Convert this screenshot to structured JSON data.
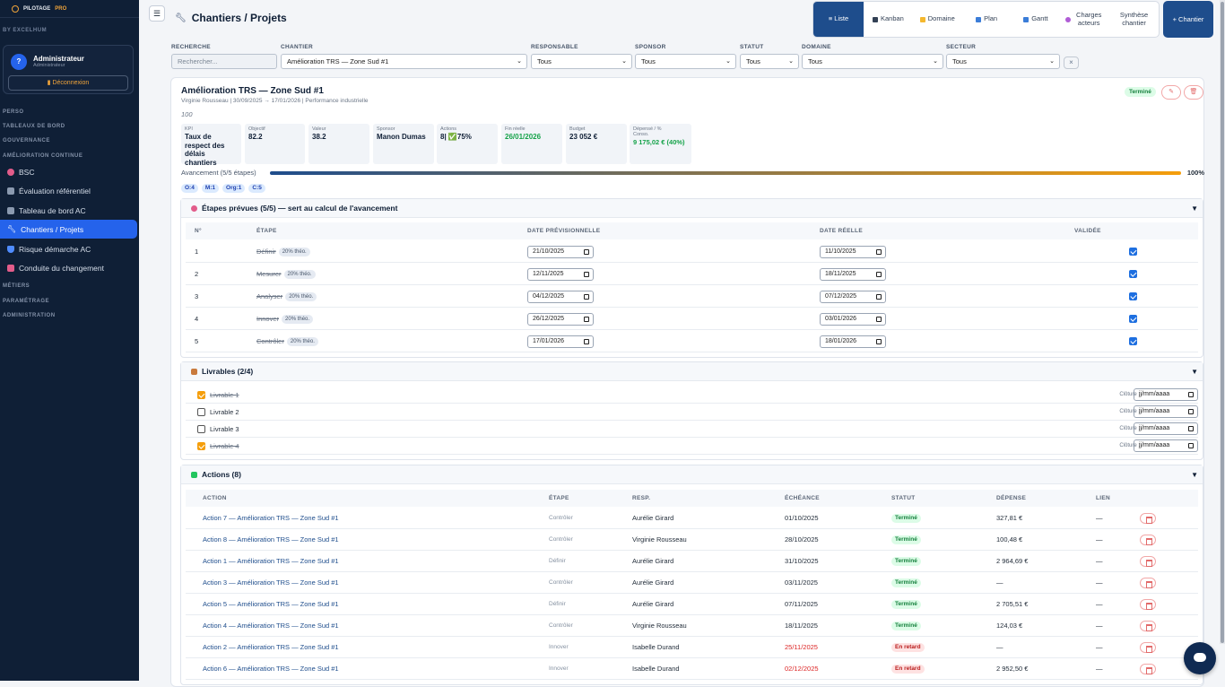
{
  "brand": {
    "name": "PILOTAGE",
    "suffix": "PRO",
    "byline": "BY EXCELHUM"
  },
  "user": {
    "avatar": "?",
    "name": "Administrateur",
    "role": "Administrateur",
    "logout": "Déconnexion"
  },
  "nav": {
    "perso": "PERSO",
    "tableaux": "TABLEAUX DE BORD",
    "gouvernance": "GOUVERNANCE",
    "amelioration": "AMÉLIORATION CONTINUE",
    "items": [
      {
        "label": "BSC",
        "color": "#e25c8a"
      },
      {
        "label": "Évaluation référentiel",
        "color": "#8b9ab0"
      },
      {
        "label": "Tableau de bord AC",
        "color": "#8b9ab0"
      },
      {
        "label": "Chantiers / Projets",
        "color": "#ffffff"
      },
      {
        "label": "Risque démarche AC",
        "color": "#4f8cff"
      },
      {
        "label": "Conduite du changement",
        "color": "#e25c8a"
      }
    ],
    "metiers": "MÉTIERS",
    "parametrage": "PARAMÉTRAGE",
    "administration": "ADMINISTRATION"
  },
  "header": {
    "menu": "☰",
    "title": "Chantiers / Projets"
  },
  "views": [
    {
      "label": "≡ Liste"
    },
    {
      "label": "Kanban",
      "color": "#334155"
    },
    {
      "label": "Domaine",
      "color": "#f5b82e"
    },
    {
      "label": "Plan",
      "color": "#3b7dd8"
    },
    {
      "label": "Gantt",
      "color": "#3b7dd8"
    },
    {
      "label": "Charges acteurs",
      "color": "#b05cd6"
    },
    {
      "label": "Synthèse chantier",
      "color": "#9aa5b4"
    }
  ],
  "new_button": "+ Chantier",
  "filters": {
    "search_label": "RECHERCHE",
    "search_placeholder": "Rechercher...",
    "chantier_label": "CHANTIER",
    "chantier_value": "Amélioration TRS — Zone Sud #1",
    "responsable_label": "RESPONSABLE",
    "responsable_value": "Tous",
    "sponsor_label": "SPONSOR",
    "sponsor_value": "Tous",
    "statut_label": "STATUT",
    "statut_value": "Tous",
    "domaine_label": "DOMAINE",
    "domaine_value": "Tous",
    "secteur_label": "SECTEUR",
    "secteur_value": "Tous",
    "clear": "×"
  },
  "project": {
    "title": "Amélioration TRS — Zone Sud #1",
    "subtitle": "Virginie Rousseau | 30/09/2025 → 17/01/2026 | Performance industrielle",
    "number": "100",
    "status": "Terminé",
    "edit_icon": "✎",
    "delete_icon": "🗑",
    "kpis": [
      {
        "k": "KPI",
        "v": "Taux de respect des délais chantiers"
      },
      {
        "k": "Objectif",
        "v": "82.2"
      },
      {
        "k": "Valeur",
        "v": "38.2"
      },
      {
        "k": "Sponsor",
        "v": "Manon Dumas"
      },
      {
        "k": "Actions",
        "v": "8| ✅75%"
      },
      {
        "k": "Fin réelle",
        "v": "26/01/2026"
      },
      {
        "k": "Budget",
        "v": "23 052 €"
      },
      {
        "k": "Dépensé / % Conso.",
        "v": "9 175,02 € (40%)"
      }
    ],
    "progress_label": "Avancement (5/5 étapes)",
    "progress_pct": "100%",
    "progress_value": 1.0,
    "chips": [
      "O:4",
      "M:1",
      "Org:1",
      "C:5"
    ]
  },
  "steps": {
    "title": "Étapes prévues (5/5) — sert au calcul de l'avancement",
    "toggle": "▼",
    "headers": [
      "N°",
      "ÉTAPE",
      "DATE PRÉVISIONNELLE",
      "DATE RÉELLE",
      "VALIDÉE"
    ],
    "rows": [
      {
        "n": "1",
        "name": "Définir",
        "theo": "20% théo.",
        "plan": "21/10/2025",
        "real": "11/10/2025"
      },
      {
        "n": "2",
        "name": "Mesurer",
        "theo": "20% théo.",
        "plan": "12/11/2025",
        "real": "18/11/2025"
      },
      {
        "n": "3",
        "name": "Analyser",
        "theo": "20% théo.",
        "plan": "04/12/2025",
        "real": "07/12/2025"
      },
      {
        "n": "4",
        "name": "Innover",
        "theo": "20% théo.",
        "plan": "26/12/2025",
        "real": "03/01/2026"
      },
      {
        "n": "5",
        "name": "Contrôler",
        "theo": "20% théo.",
        "plan": "17/01/2026",
        "real": "18/01/2026"
      }
    ]
  },
  "livrables": {
    "title": "Livrables (2/4)",
    "toggle": "▼",
    "cloture_label": "Clôture :",
    "date_placeholder": "jj/mm/aaaa",
    "items": [
      {
        "label": "Livrable 1",
        "done": true
      },
      {
        "label": "Livrable 2",
        "done": false
      },
      {
        "label": "Livrable 3",
        "done": false
      },
      {
        "label": "Livrable 4",
        "done": true
      }
    ]
  },
  "actions": {
    "title": "Actions (8)",
    "toggle": "▼",
    "headers": [
      "ACTION",
      "ÉTAPE",
      "RESP.",
      "ÉCHÉANCE",
      "STATUT",
      "DÉPENSE",
      "LIEN"
    ],
    "rows": [
      {
        "name": "Action 7 — Amélioration TRS — Zone Sud #1",
        "step": "Contrôler",
        "resp": "Aurélie Girard",
        "due": "01/10/2025",
        "status": "Terminé",
        "cost": "327,81 €",
        "link": "—"
      },
      {
        "name": "Action 8 — Amélioration TRS — Zone Sud #1",
        "step": "Contrôler",
        "resp": "Virginie Rousseau",
        "due": "28/10/2025",
        "status": "Terminé",
        "cost": "100,48 €",
        "link": "—"
      },
      {
        "name": "Action 1 — Amélioration TRS — Zone Sud #1",
        "step": "Définir",
        "resp": "Aurélie Girard",
        "due": "31/10/2025",
        "status": "Terminé",
        "cost": "2 964,69 €",
        "link": "—"
      },
      {
        "name": "Action 3 — Amélioration TRS — Zone Sud #1",
        "step": "Contrôler",
        "resp": "Aurélie Girard",
        "due": "03/11/2025",
        "status": "Terminé",
        "cost": "—",
        "link": "—"
      },
      {
        "name": "Action 5 — Amélioration TRS — Zone Sud #1",
        "step": "Définir",
        "resp": "Aurélie Girard",
        "due": "07/11/2025",
        "status": "Terminé",
        "cost": "2 705,51 €",
        "link": "—"
      },
      {
        "name": "Action 4 — Amélioration TRS — Zone Sud #1",
        "step": "Contrôler",
        "resp": "Virginie Rousseau",
        "due": "18/11/2025",
        "status": "Terminé",
        "cost": "124,03 €",
        "link": "—"
      },
      {
        "name": "Action 2 — Amélioration TRS — Zone Sud #1",
        "step": "Innover",
        "resp": "Isabelle Durand",
        "due": "25/11/2025",
        "status": "En retard",
        "cost": "—",
        "link": "—"
      },
      {
        "name": "Action 6 — Amélioration TRS — Zone Sud #1",
        "step": "Innover",
        "resp": "Isabelle Durand",
        "due": "02/12/2025",
        "status": "En retard",
        "cost": "2 952,50 €",
        "link": "—"
      }
    ]
  }
}
